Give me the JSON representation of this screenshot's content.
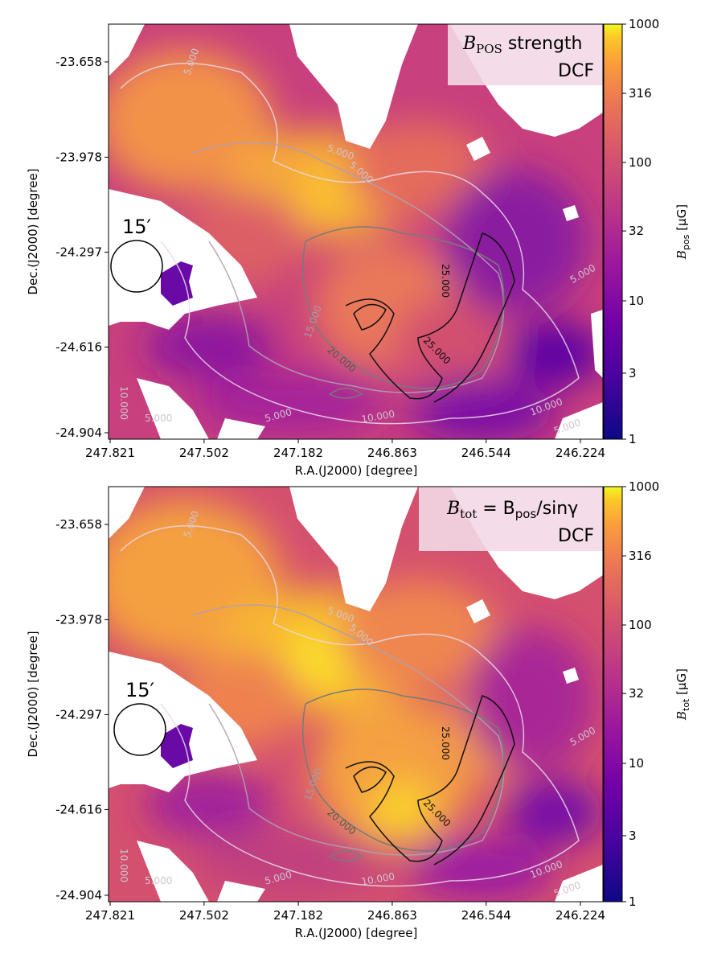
{
  "chart_data": [
    {
      "type": "heatmap",
      "panel_label_main": "B",
      "panel_label_sub": "POS",
      "panel_label_rest": " strength",
      "method": "DCF",
      "xlabel": "R.A.(J2000) [degree]",
      "ylabel": "Dec.(J2000) [degree]",
      "x_ticks": [
        "247.821",
        "247.502",
        "247.182",
        "246.863",
        "246.544",
        "246.224"
      ],
      "y_ticks": [
        "-23.658",
        "-23.978",
        "-24.297",
        "-24.616",
        "-24.904"
      ],
      "xlim": [
        247.821,
        246.224
      ],
      "ylim": [
        -24.904,
        -23.658
      ],
      "colorbar": {
        "label_main": "B",
        "label_sub": "pos",
        "label_unit": " [μG]",
        "scale": "log",
        "range": [
          1,
          1000
        ],
        "ticks": [
          "1000",
          "316",
          "100",
          "32",
          "10",
          "3",
          "1"
        ],
        "colormap": "plasma"
      },
      "beam_label": "15′",
      "contour_labels": [
        "5.000",
        "5.000",
        "5.000",
        "5.000",
        "10.000",
        "10.000",
        "10.000",
        "15.000",
        "20.000",
        "25.000",
        "25.000",
        "5.000",
        "5.000",
        "5.000"
      ]
    },
    {
      "type": "heatmap",
      "panel_label_main": "B",
      "panel_label_sub": "tot",
      "panel_label_rest": " = B",
      "panel_label_sub2": "pos",
      "panel_label_rest2": "/sinγ",
      "method": "DCF",
      "xlabel": "R.A.(J2000) [degree]",
      "ylabel": "Dec.(J2000) [degree]",
      "x_ticks": [
        "247.821",
        "247.502",
        "247.182",
        "246.863",
        "246.544",
        "246.224"
      ],
      "y_ticks": [
        "-23.658",
        "-23.978",
        "-24.297",
        "-24.616",
        "-24.904"
      ],
      "xlim": [
        247.821,
        246.224
      ],
      "ylim": [
        -24.904,
        -23.658
      ],
      "colorbar": {
        "label_main": "B",
        "label_sub": "tot",
        "label_unit": " [μG]",
        "scale": "log",
        "range": [
          1,
          1000
        ],
        "ticks": [
          "1000",
          "316",
          "100",
          "32",
          "10",
          "3",
          "1"
        ],
        "colormap": "plasma"
      },
      "beam_label": "15′",
      "contour_labels": [
        "5.000",
        "5.000",
        "5.000",
        "5.000",
        "10.000",
        "10.000",
        "10.000",
        "15.000",
        "20.000",
        "25.000",
        "25.000",
        "5.000",
        "5.000",
        "5.000"
      ]
    }
  ]
}
